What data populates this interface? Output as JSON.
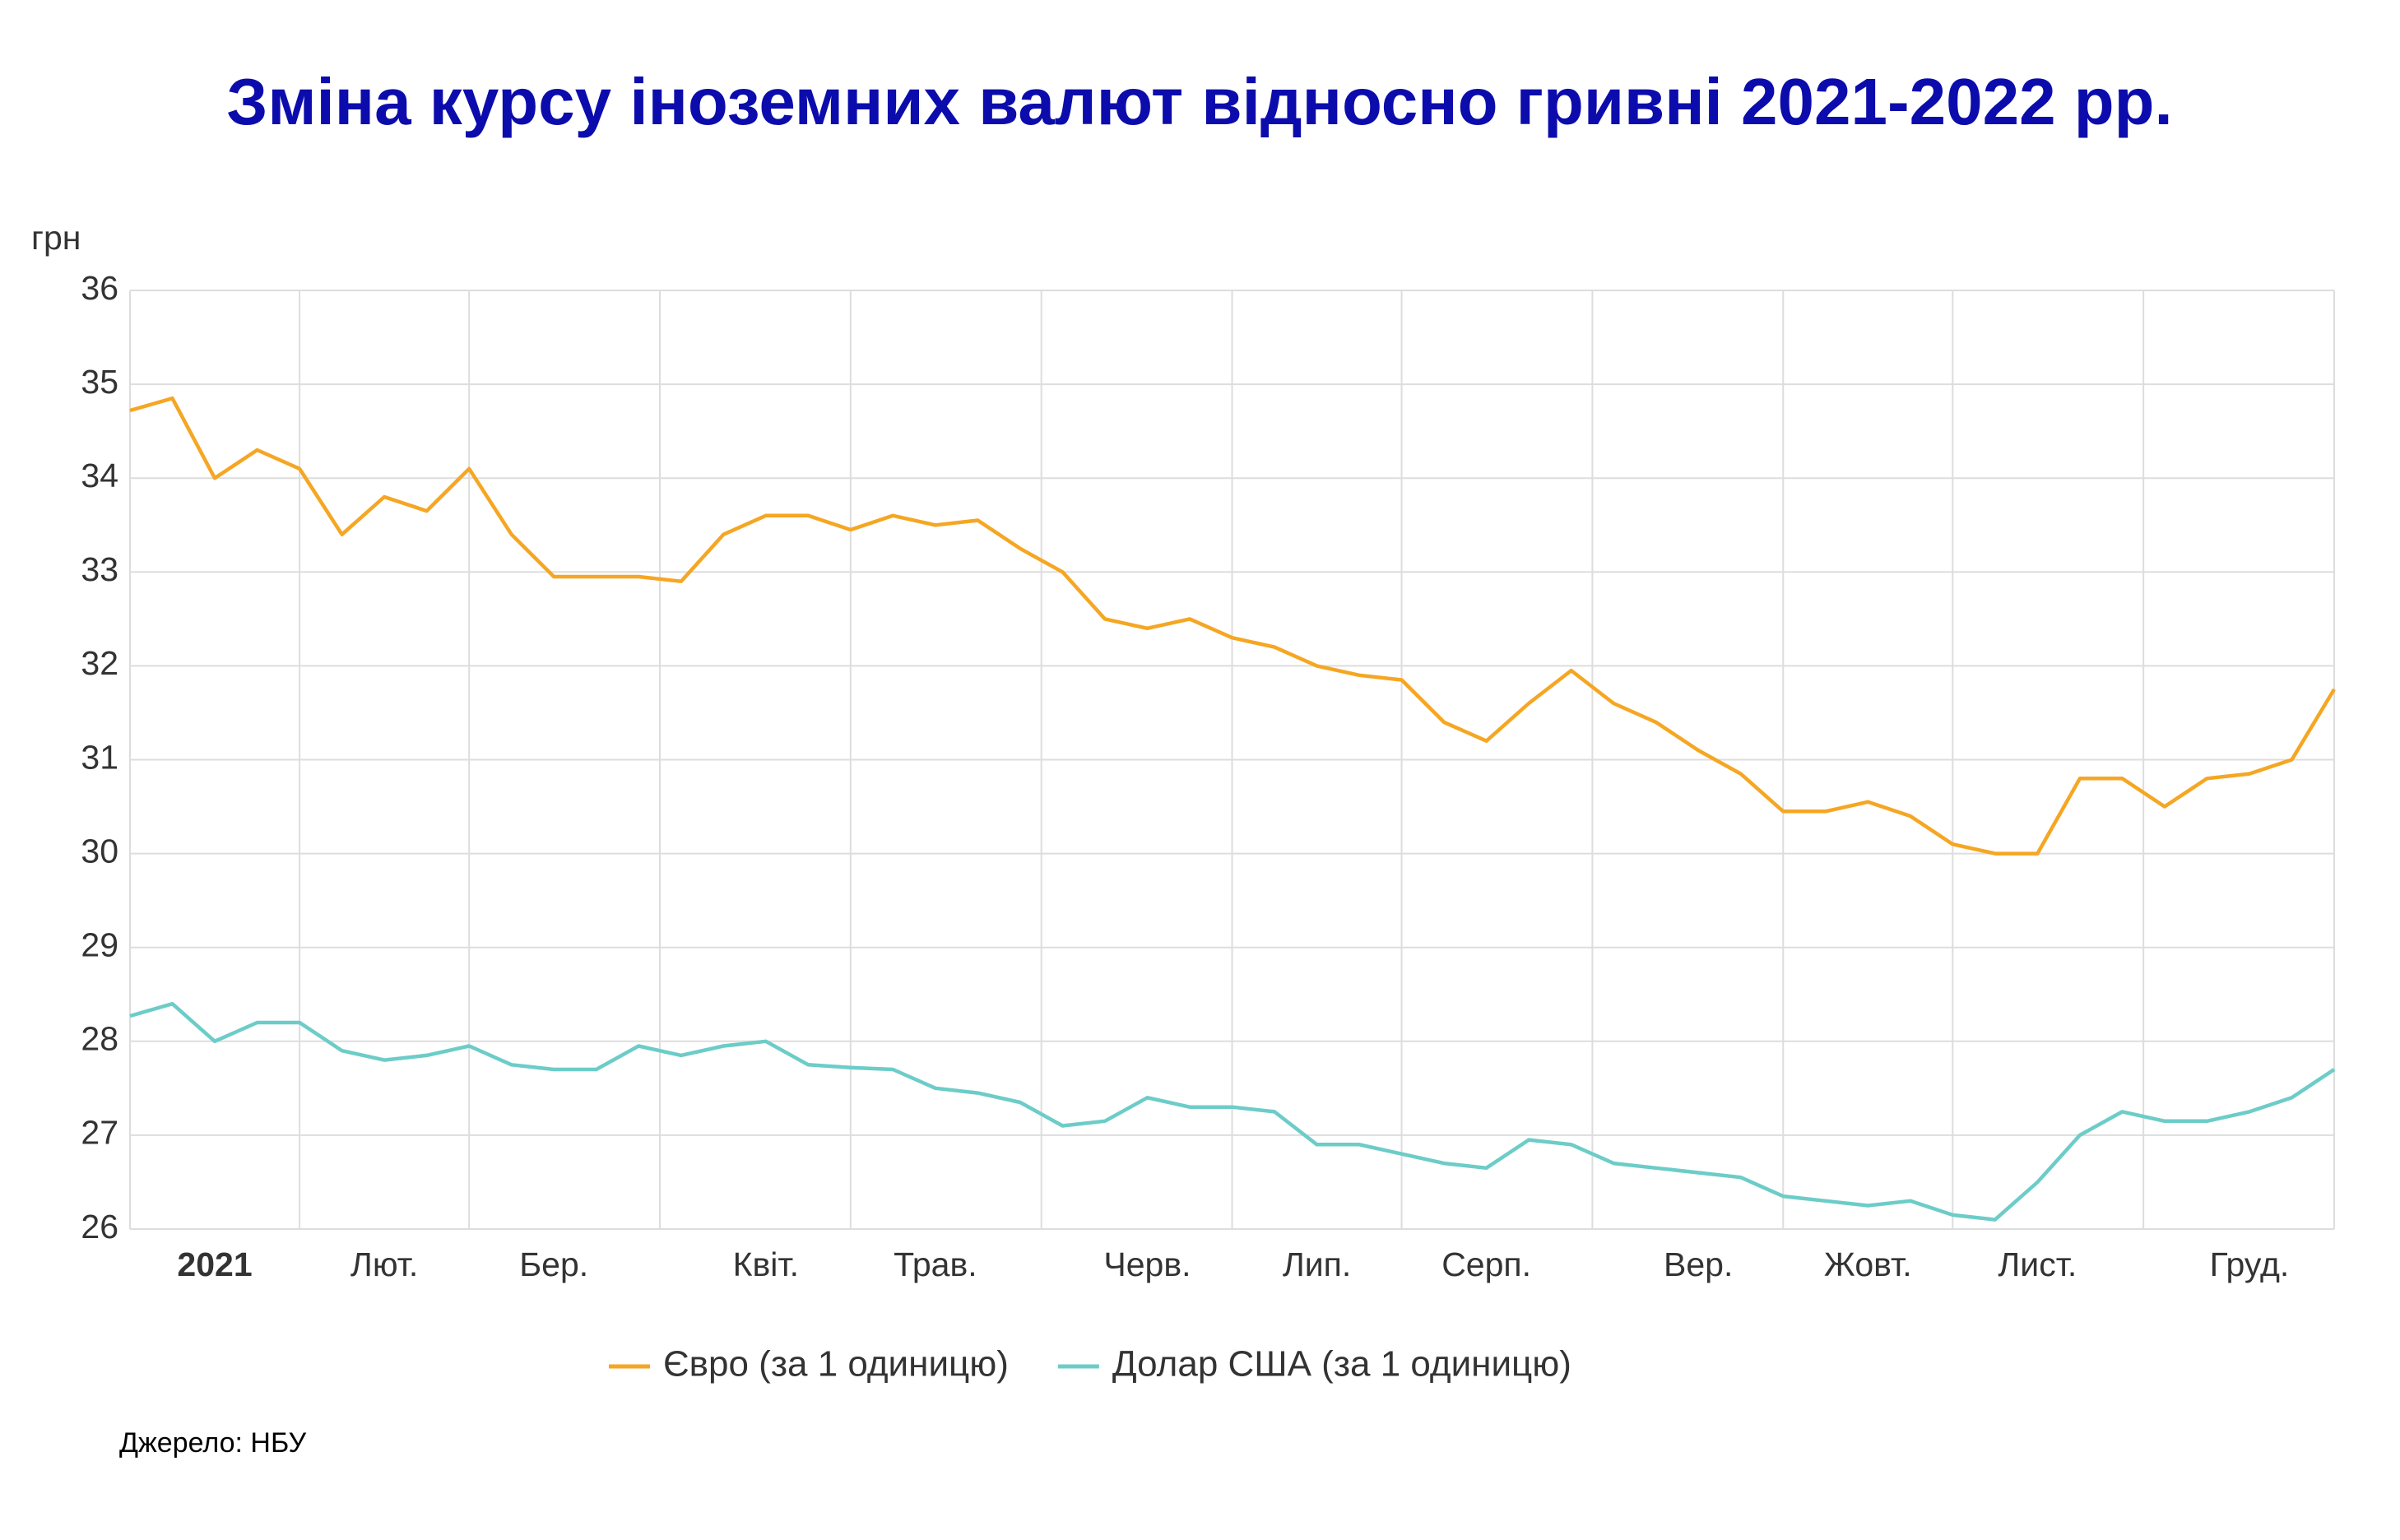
{
  "chart_data": {
    "type": "line",
    "title": "Зміна курсу іноземних валют відносно гривні 2021-2022 рр.",
    "y_label": "грн",
    "source": "Джерело: НБУ",
    "categories": [
      null,
      null,
      "2021",
      null,
      null,
      null,
      "Лют.",
      null,
      null,
      null,
      "Бер.",
      null,
      null,
      null,
      null,
      "Квіт.",
      null,
      null,
      null,
      "Трав.",
      null,
      null,
      null,
      null,
      "Черв.",
      null,
      null,
      null,
      "Лип.",
      null,
      null,
      null,
      "Серп.",
      null,
      null,
      null,
      null,
      "Вер.",
      null,
      null,
      null,
      "Жовт.",
      null,
      null,
      null,
      "Лист.",
      null,
      null,
      null,
      null,
      "Груд.",
      null,
      null
    ],
    "series": [
      {
        "name": "Євро (за 1 одиницю)",
        "color": "#f5a623",
        "values": [
          34.72,
          34.85,
          34.0,
          34.3,
          34.1,
          33.4,
          33.8,
          33.65,
          34.1,
          33.4,
          32.95,
          32.95,
          32.95,
          32.9,
          33.4,
          33.6,
          33.6,
          33.45,
          33.6,
          33.5,
          33.55,
          33.25,
          33.0,
          32.5,
          32.4,
          32.5,
          32.3,
          32.2,
          32.0,
          31.9,
          31.85,
          31.4,
          31.2,
          31.6,
          31.95,
          31.6,
          31.4,
          31.1,
          30.85,
          30.45,
          30.45,
          30.55,
          30.4,
          30.1,
          30.0,
          30.0,
          30.8,
          30.8,
          30.5,
          30.8,
          30.85,
          31.0,
          31.75
        ]
      },
      {
        "name": "Долар США (за 1 одиницю)",
        "color": "#6cccc8",
        "values": [
          28.27,
          28.4,
          28.0,
          28.2,
          28.2,
          27.9,
          27.8,
          27.85,
          27.95,
          27.75,
          27.7,
          27.7,
          27.95,
          27.85,
          27.95,
          28.0,
          27.75,
          27.72,
          27.7,
          27.5,
          27.45,
          27.35,
          27.1,
          27.15,
          27.4,
          27.3,
          27.3,
          27.25,
          26.9,
          26.9,
          26.8,
          26.7,
          26.65,
          26.95,
          26.9,
          26.7,
          26.65,
          26.6,
          26.55,
          26.35,
          26.3,
          26.25,
          26.3,
          26.15,
          26.1,
          26.5,
          27.0,
          27.25,
          27.15,
          27.15,
          27.25,
          27.4,
          27.7
        ]
      }
    ],
    "ylim": [
      26,
      36
    ],
    "yticks": [
      26,
      27,
      28,
      29,
      30,
      31,
      32,
      33,
      34,
      35,
      36
    ],
    "grid": true,
    "legend": "bottom"
  }
}
